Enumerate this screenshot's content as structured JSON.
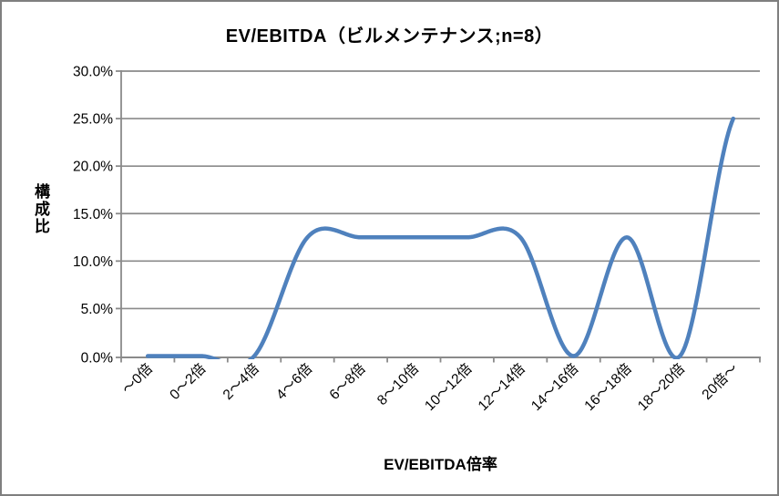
{
  "chart_data": {
    "type": "line",
    "title": "EV/EBITDA（ビルメンテナンス;n=8）",
    "xlabel": "EV/EBITDA倍率",
    "ylabel": "構成比",
    "categories": [
      "～0倍",
      "0～2倍",
      "2～4倍",
      "4～6倍",
      "6～8倍",
      "8～10倍",
      "10～12倍",
      "12～14倍",
      "14～16倍",
      "16～18倍",
      "18～20倍",
      "20倍～"
    ],
    "values": [
      0,
      0,
      0,
      12.5,
      12.5,
      12.5,
      12.5,
      12.5,
      0,
      12.5,
      0,
      25
    ],
    "y_tick_labels": [
      "0.0%",
      "5.0%",
      "10.0%",
      "15.0%",
      "20.0%",
      "25.0%",
      "30.0%"
    ],
    "ylim": [
      0,
      30
    ],
    "y_step": 5,
    "grid": "horizontal",
    "legend": "none",
    "smooth": true,
    "markers": "none",
    "x_label_rotation": -45,
    "line_color": "#4F81BD",
    "grid_color": "#8A8A8A",
    "axis_color": "#8A8A8A",
    "text_color": "#000000",
    "background_color": "#FFFFFF",
    "frame_border_color": "#7F7F7F"
  }
}
